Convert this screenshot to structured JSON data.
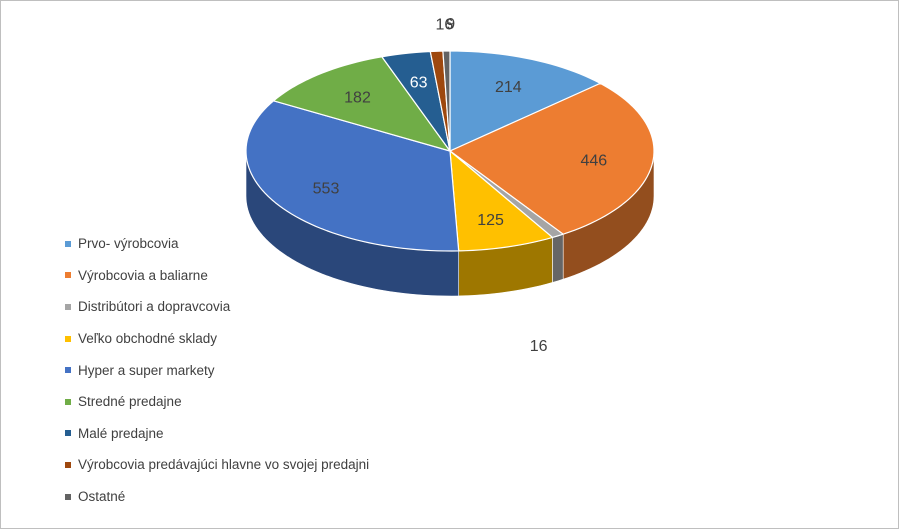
{
  "chart_data": {
    "type": "pie",
    "style": "3d",
    "title": "",
    "legend_position": "left",
    "categories": [
      "Prvo- výrobcovia",
      "Výrobcovia a baliarne",
      "Distribútori a dopravcovia",
      "Veľko obchodné sklady",
      "Hyper a super markety",
      "Stredné predajne",
      "Malé  predajne",
      "Výrobcovia predávajúci hlavne vo svojej predajni",
      "Ostatné"
    ],
    "values": [
      214,
      446,
      16,
      125,
      553,
      182,
      63,
      16,
      9
    ],
    "colors": [
      "#5B9BD5",
      "#ED7D31",
      "#A5A5A5",
      "#FFC000",
      "#4472C4",
      "#70AD47",
      "#255E91",
      "#9E480E",
      "#636363"
    ],
    "data_labels": [
      "214",
      "446",
      "16",
      "125",
      "553",
      "182",
      "63",
      "16",
      "9"
    ]
  }
}
